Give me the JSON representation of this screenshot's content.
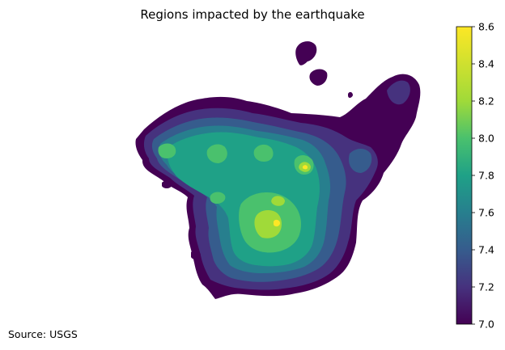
{
  "chart_data": {
    "type": "heatmap",
    "subtype": "filled-contour-map",
    "title": "Regions impacted by the earthquake",
    "source_note": "Source: USGS",
    "colormap": "viridis",
    "colorbar": {
      "min": 7.0,
      "max": 8.6,
      "ticks": [
        7.0,
        7.2,
        7.4,
        7.6,
        7.8,
        8.0,
        8.2,
        8.4,
        8.6
      ],
      "tick_labels": [
        "7.0",
        "7.2",
        "7.4",
        "7.6",
        "7.8",
        "8.0",
        "8.2",
        "8.4",
        "8.6"
      ],
      "orientation": "vertical",
      "placement": "right"
    },
    "contour_levels": [
      7.0,
      7.2,
      7.4,
      7.6,
      7.8,
      8.0,
      8.2,
      8.4,
      8.6
    ],
    "level_colors": [
      "#440154",
      "#46327e",
      "#365c8d",
      "#277f8e",
      "#1fa187",
      "#4ac16d",
      "#a0da39",
      "#fde725"
    ],
    "peak_value": 8.6,
    "axes_visible": false
  }
}
